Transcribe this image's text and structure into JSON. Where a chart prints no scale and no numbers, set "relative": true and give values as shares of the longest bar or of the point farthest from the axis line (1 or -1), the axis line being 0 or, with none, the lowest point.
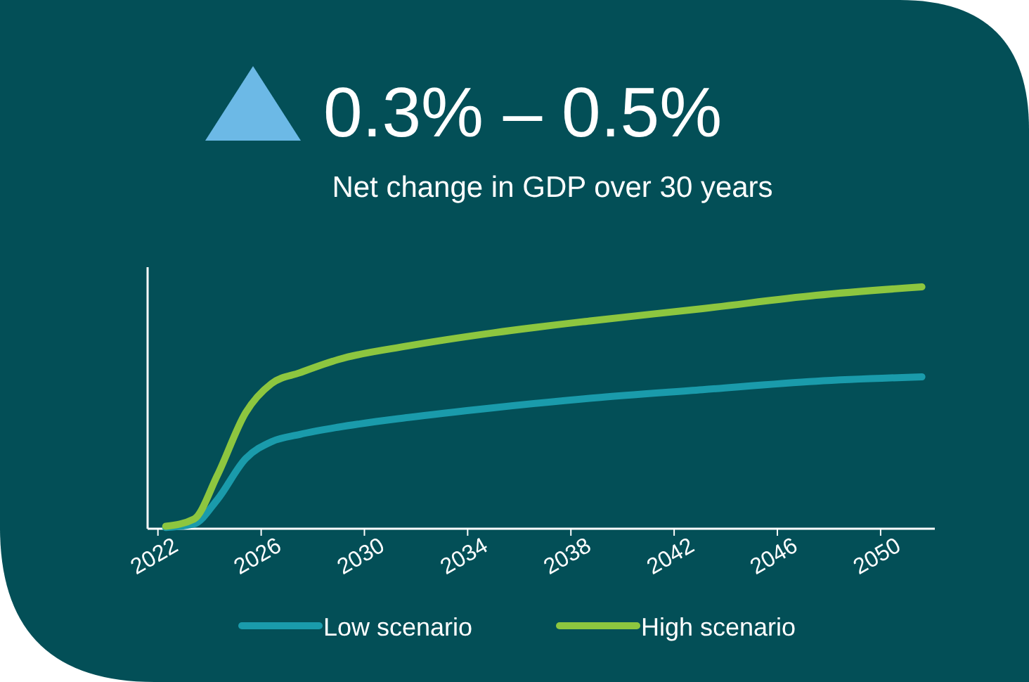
{
  "chart_data": {
    "type": "line",
    "title": "0.3% – 0.5%",
    "subtitle": "Net change in GDP over 30 years",
    "relative": true,
    "xlim": [
      2021.6,
      2052.1
    ],
    "xticks": [
      2022,
      2026,
      2030,
      2034,
      2038,
      2042,
      2046,
      2050
    ],
    "legend": "bottom",
    "grid": false,
    "marker": "none",
    "line_style": "solid",
    "series": [
      {
        "name": "Low scenario",
        "color": "#1a9bab",
        "x": [
          2022.3,
          2023.4,
          2024.3,
          2025.4,
          2026.4,
          2027.5,
          2029,
          2031.7,
          2035,
          2038.8,
          2043.1,
          2047.5,
          2051.6
        ],
        "values": [
          0.005,
          0.02,
          0.12,
          0.29,
          0.36,
          0.39,
          0.42,
          0.46,
          0.5,
          0.54,
          0.575,
          0.61,
          0.628
        ]
      },
      {
        "name": "High scenario",
        "color": "#8dc63f",
        "x": [
          2022.3,
          2023.4,
          2024.3,
          2025.4,
          2026.4,
          2027.5,
          2029,
          2031.7,
          2035,
          2038.8,
          2043.1,
          2047.5,
          2051.6
        ],
        "values": [
          0.01,
          0.04,
          0.22,
          0.48,
          0.6,
          0.645,
          0.7,
          0.756,
          0.81,
          0.86,
          0.91,
          0.965,
          1
        ]
      }
    ]
  }
}
